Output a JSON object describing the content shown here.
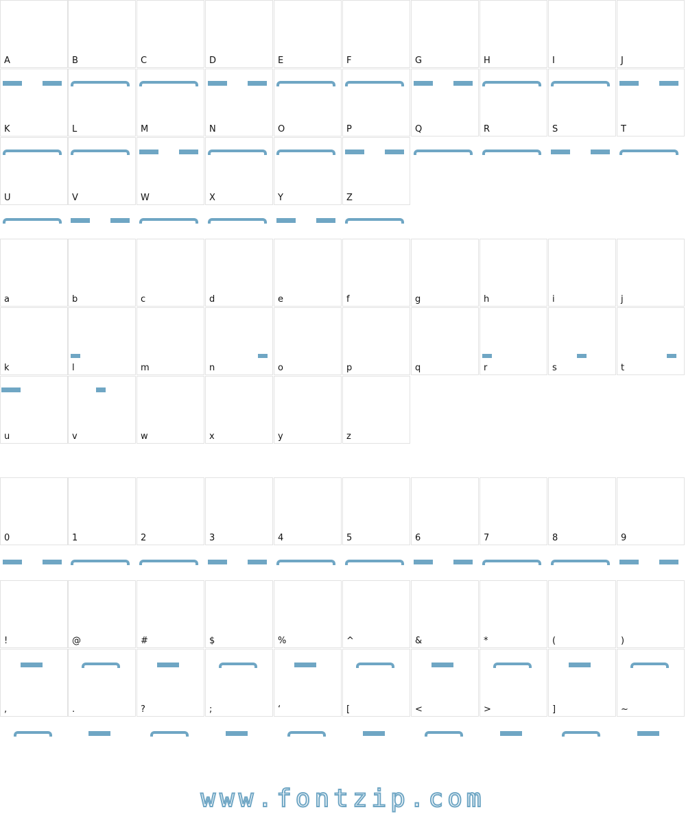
{
  "sections": [
    {
      "rows": [
        [
          "A",
          "B",
          "C",
          "D",
          "E",
          "F",
          "G",
          "H",
          "I",
          "J"
        ],
        [
          "K",
          "L",
          "M",
          "N",
          "O",
          "P",
          "Q",
          "R",
          "S",
          "T"
        ],
        [
          "U",
          "V",
          "W",
          "X",
          "Y",
          "Z"
        ]
      ]
    },
    {
      "rows": [
        [
          "a",
          "b",
          "c",
          "d",
          "e",
          "f",
          "g",
          "h",
          "i",
          "j"
        ],
        [
          "k",
          "l",
          "m",
          "n",
          "o",
          "p",
          "q",
          "r",
          "s",
          "t"
        ],
        [
          "u",
          "v",
          "w",
          "x",
          "y",
          "z"
        ]
      ]
    },
    {
      "rows": [
        [
          "0",
          "1",
          "2",
          "3",
          "4",
          "5",
          "6",
          "7",
          "8",
          "9"
        ]
      ]
    },
    {
      "rows": [
        [
          "!",
          "@",
          "#",
          "$",
          "%",
          "^",
          "&",
          "*",
          "(",
          ")"
        ],
        [
          ",",
          ".",
          "?",
          ";",
          "‘",
          "[",
          "<",
          ">",
          "]",
          "~"
        ]
      ]
    }
  ],
  "footer": "www.fontzip.com"
}
